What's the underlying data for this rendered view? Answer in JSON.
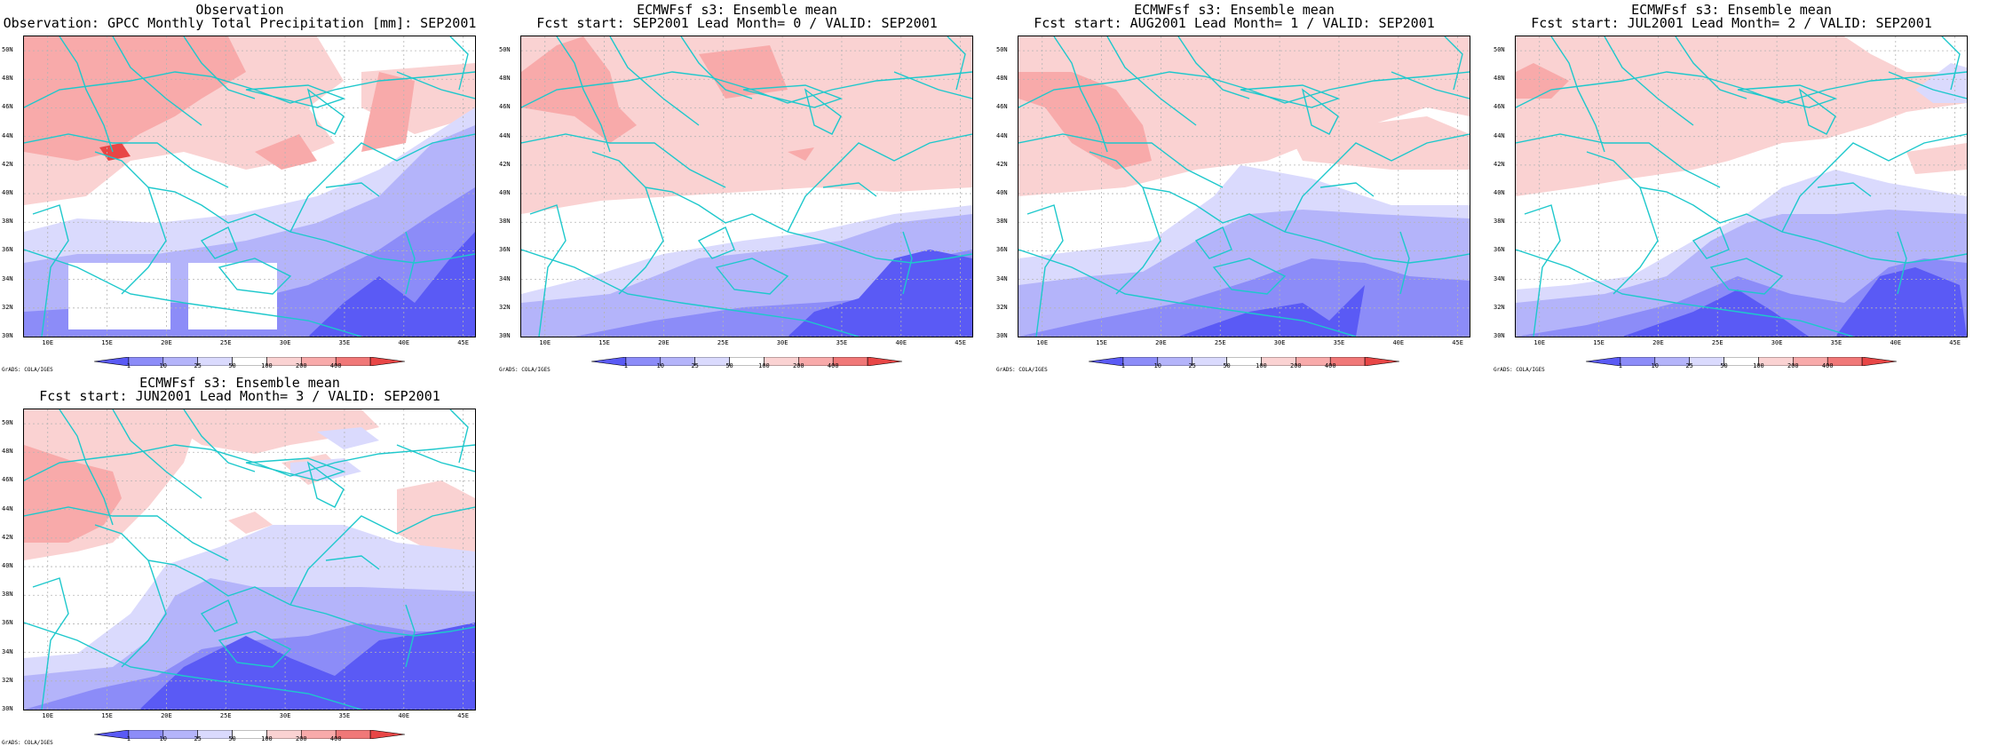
{
  "colors": {
    "coast": "#1ec8cc",
    "grid": "#b4b4b4",
    "levels": [
      "#5a5af5",
      "#8c8cf8",
      "#b4b4fa",
      "#dadafd",
      "#ffffff",
      "#fad2d2",
      "#f8aaaa",
      "#f07878",
      "#e84646"
    ]
  },
  "legend": {
    "labels": [
      "1",
      "10",
      "25",
      "50",
      "100",
      "200",
      "400"
    ]
  },
  "axes": {
    "lat_labels": [
      "50N",
      "48N",
      "46N",
      "44N",
      "42N",
      "40N",
      "38N",
      "36N",
      "34N",
      "32N",
      "30N"
    ],
    "lon_labels": [
      "10E",
      "15E",
      "20E",
      "25E",
      "30E",
      "35E",
      "40E",
      "45E"
    ]
  },
  "credit": "GrADS: COLA/IGES",
  "panels": [
    {
      "line1": "Observation",
      "line2": "Observation: GPCC Monthly Total Precipitation [mm]: SEP2001"
    },
    {
      "line1": "ECMWFsf s3: Ensemble mean",
      "line2": "Fcst start: SEP2001  Lead Month= 0 / VALID: SEP2001"
    },
    {
      "line1": "ECMWFsf s3: Ensemble mean",
      "line2": "Fcst start: AUG2001  Lead Month= 1 / VALID: SEP2001"
    },
    {
      "line1": "ECMWFsf s3: Ensemble mean",
      "line2": "Fcst start: JUL2001  Lead Month= 2 / VALID: SEP2001"
    },
    {
      "line1": "ECMWFsf s3: Ensemble mean",
      "line2": "Fcst start: JUN2001  Lead Month= 3 / VALID: SEP2001"
    }
  ]
}
